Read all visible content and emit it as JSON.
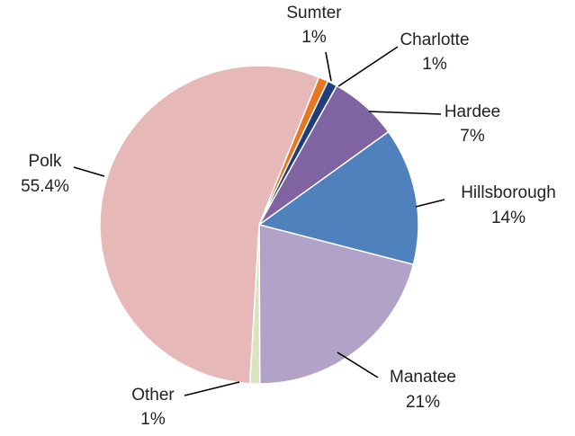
{
  "chart_data": {
    "type": "pie",
    "categories": [
      "Sumter",
      "Charlotte",
      "Hardee",
      "Hillsborough",
      "Manatee",
      "Other",
      "Polk"
    ],
    "values": [
      1,
      1,
      7,
      14,
      21,
      1,
      55.4
    ],
    "value_labels": [
      "1%",
      "1%",
      "7%",
      "14%",
      "21%",
      "1%",
      "55.4%"
    ],
    "colors": [
      "#e87722",
      "#1f3d7a",
      "#8064a2",
      "#4f81bd",
      "#b3a2c7",
      "#d7e4bd",
      "#e6b9b8"
    ]
  }
}
